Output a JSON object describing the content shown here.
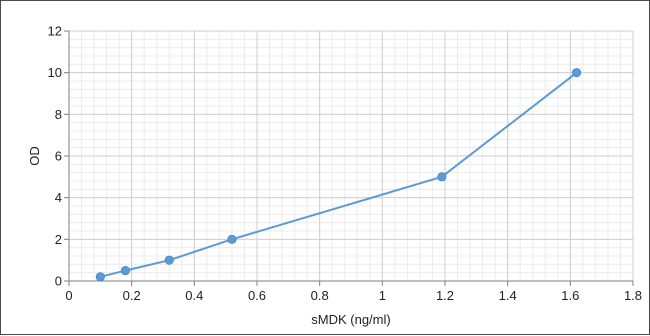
{
  "chart_data": {
    "type": "line",
    "title": "",
    "xlabel": "sMDK (ng/ml)",
    "ylabel": "OD",
    "xlim": [
      0,
      1.8
    ],
    "ylim": [
      0,
      12
    ],
    "x_ticks": [
      "0",
      "0.2",
      "0.4",
      "0.6",
      "0.8",
      "1",
      "1.2",
      "1.4",
      "1.6",
      "1.8"
    ],
    "y_ticks": [
      "0",
      "2",
      "4",
      "6",
      "8",
      "10",
      "12"
    ],
    "grid": true,
    "minor_grid": true,
    "legend": "none",
    "series": [
      {
        "color": "#5b9bd5",
        "points": [
          {
            "x": 0.1,
            "y": 0.2
          },
          {
            "x": 0.18,
            "y": 0.5
          },
          {
            "x": 0.32,
            "y": 1.0
          },
          {
            "x": 0.52,
            "y": 2.0
          },
          {
            "x": 1.19,
            "y": 5.0
          },
          {
            "x": 1.62,
            "y": 10.0
          }
        ]
      }
    ]
  }
}
